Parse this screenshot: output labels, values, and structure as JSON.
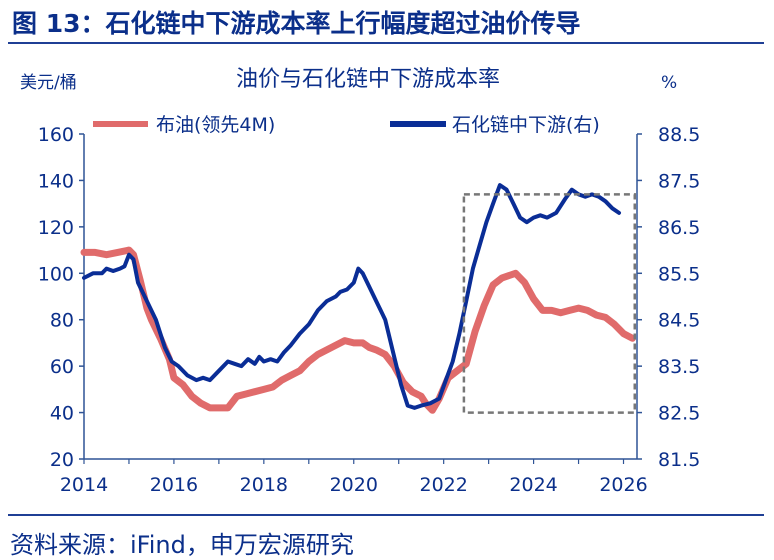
{
  "figure": {
    "title": "图 13：石化链中下游成本率上行幅度超过油价传导",
    "source": "资料来源：iFind，申万宏源研究"
  },
  "chart_data": {
    "type": "line",
    "title": "油价与石化链中下游成本率",
    "y_left_unit": "美元/桶",
    "y_right_unit": "%",
    "xlim": [
      2014,
      2026.3
    ],
    "ylim_left": [
      20,
      160
    ],
    "ylim_right": [
      81.5,
      88.5
    ],
    "x_ticks": [
      "2014",
      "2016",
      "2018",
      "2020",
      "2022",
      "2024",
      "2026"
    ],
    "y_left_ticks": [
      "160",
      "140",
      "120",
      "100",
      "80",
      "60",
      "40",
      "20"
    ],
    "y_right_ticks": [
      "88.5",
      "87.5",
      "86.5",
      "85.5",
      "84.5",
      "83.5",
      "82.5",
      "81.5"
    ],
    "highlight_box": {
      "x": [
        2022.45,
        2026.25
      ],
      "y_left": [
        40,
        134
      ]
    },
    "legend": [
      "布油(领先4M)",
      "石化链中下游(右)"
    ],
    "colors": {
      "oil": "#e06b6b",
      "chain": "#0a2d96",
      "axis": "#2f5496",
      "box": "#777777"
    },
    "series": [
      {
        "name": "布油(领先4M)",
        "axis": "left",
        "x": [
          2014.0,
          2014.25,
          2014.5,
          2014.75,
          2015.0,
          2015.1,
          2015.25,
          2015.4,
          2015.5,
          2015.7,
          2015.9,
          2016.0,
          2016.2,
          2016.4,
          2016.6,
          2016.8,
          2017.0,
          2017.2,
          2017.4,
          2017.6,
          2017.8,
          2018.0,
          2018.2,
          2018.4,
          2018.6,
          2018.8,
          2019.0,
          2019.2,
          2019.4,
          2019.6,
          2019.8,
          2020.0,
          2020.2,
          2020.35,
          2020.5,
          2020.7,
          2020.9,
          2021.1,
          2021.3,
          2021.5,
          2021.6,
          2021.75,
          2021.9,
          2022.1,
          2022.3,
          2022.5,
          2022.7,
          2022.9,
          2023.1,
          2023.3,
          2023.45,
          2023.6,
          2023.8,
          2024.0,
          2024.2,
          2024.4,
          2024.6,
          2024.8,
          2025.0,
          2025.2,
          2025.4,
          2025.6,
          2025.8,
          2026.0,
          2026.2
        ],
        "values": [
          109,
          109,
          108,
          109,
          110,
          108,
          97,
          85,
          80,
          72,
          63,
          55,
          52,
          47,
          44,
          42,
          42,
          42,
          47,
          48,
          49,
          50,
          51,
          54,
          56,
          58,
          62,
          65,
          67,
          69,
          71,
          70,
          70,
          68,
          67,
          65,
          60,
          53,
          49,
          47,
          44,
          41,
          46,
          55,
          58,
          61,
          75,
          86,
          95,
          98,
          99,
          100,
          96,
          89,
          84,
          84,
          83,
          84,
          85,
          84,
          82,
          81,
          78,
          74,
          72
        ],
        "line_width": 7
      },
      {
        "name": "石化链中下游(右)",
        "axis": "right",
        "x": [
          2014.0,
          2014.2,
          2014.4,
          2014.5,
          2014.65,
          2014.8,
          2014.9,
          2015.0,
          2015.1,
          2015.2,
          2015.4,
          2015.6,
          2015.8,
          2015.95,
          2016.1,
          2016.3,
          2016.5,
          2016.65,
          2016.8,
          2017.0,
          2017.2,
          2017.35,
          2017.5,
          2017.65,
          2017.8,
          2017.9,
          2018.0,
          2018.15,
          2018.3,
          2018.45,
          2018.6,
          2018.8,
          2019.0,
          2019.2,
          2019.4,
          2019.6,
          2019.7,
          2019.85,
          2020.0,
          2020.1,
          2020.2,
          2020.35,
          2020.5,
          2020.7,
          2020.9,
          2021.05,
          2021.2,
          2021.35,
          2021.5,
          2021.7,
          2021.9,
          2022.05,
          2022.2,
          2022.35,
          2022.5,
          2022.65,
          2022.8,
          2022.95,
          2023.1,
          2023.25,
          2023.4,
          2023.55,
          2023.7,
          2023.85,
          2024.0,
          2024.15,
          2024.3,
          2024.5,
          2024.7,
          2024.85,
          2025.0,
          2025.15,
          2025.3,
          2025.45,
          2025.6,
          2025.75,
          2025.9
        ],
        "values": [
          85.4,
          85.5,
          85.5,
          85.6,
          85.55,
          85.6,
          85.65,
          85.9,
          85.8,
          85.3,
          84.9,
          84.5,
          83.9,
          83.6,
          83.5,
          83.3,
          83.2,
          83.25,
          83.2,
          83.4,
          83.6,
          83.55,
          83.5,
          83.65,
          83.55,
          83.7,
          83.6,
          83.65,
          83.6,
          83.8,
          83.95,
          84.2,
          84.4,
          84.7,
          84.9,
          85.0,
          85.1,
          85.15,
          85.3,
          85.6,
          85.5,
          85.2,
          84.9,
          84.5,
          83.7,
          83.1,
          82.65,
          82.6,
          82.65,
          82.7,
          82.8,
          83.2,
          83.6,
          84.2,
          84.9,
          85.6,
          86.1,
          86.6,
          87.0,
          87.4,
          87.3,
          87.0,
          86.7,
          86.6,
          86.7,
          86.75,
          86.7,
          86.8,
          87.1,
          87.3,
          87.2,
          87.15,
          87.2,
          87.15,
          87.05,
          86.9,
          86.8
        ],
        "line_width": 4
      }
    ]
  }
}
